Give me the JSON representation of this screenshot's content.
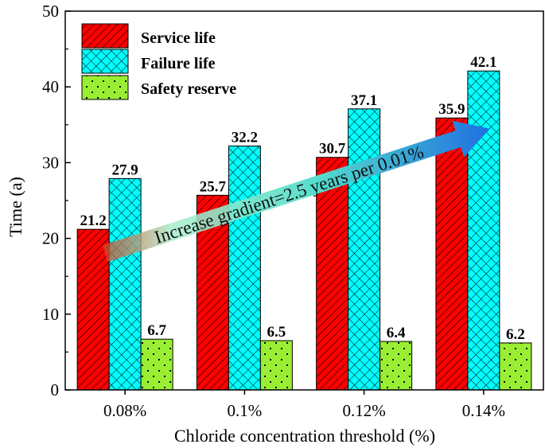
{
  "chart_data": {
    "type": "bar",
    "title": "",
    "xlabel": "Chloride concentration threshold (%)",
    "ylabel": "Time (a)",
    "ylim": [
      0,
      50
    ],
    "yticks": [
      "0",
      "10",
      "20",
      "30",
      "40",
      "50"
    ],
    "categories": [
      "0.08%",
      "0.1%",
      "0.12%",
      "0.14%"
    ],
    "series": [
      {
        "name": "Service life",
        "values": [
          21.2,
          25.7,
          30.7,
          35.9
        ],
        "labels": [
          "21.2",
          "25.7",
          "30.7",
          "35.9"
        ],
        "color": "#ff0000",
        "pattern": "hatch"
      },
      {
        "name": "Failure life",
        "values": [
          27.9,
          32.2,
          37.1,
          42.1
        ],
        "labels": [
          "27.9",
          "32.2",
          "37.1",
          "42.1"
        ],
        "color": "#00ffff",
        "pattern": "crosshatch"
      },
      {
        "name": "Safety reserve",
        "values": [
          6.7,
          6.5,
          6.4,
          6.2
        ],
        "labels": [
          "6.7",
          "6.5",
          "6.4",
          "6.2"
        ],
        "color": "#99ee33",
        "pattern": "dots"
      }
    ],
    "legend_position": "top-left",
    "grid": false,
    "annotation": {
      "text": "Increase gradient=2.5 years per 0.01%",
      "from": {
        "category": "0.08%",
        "value": 18.0
      },
      "to": {
        "category": "0.14%",
        "value": 34.5
      }
    }
  }
}
